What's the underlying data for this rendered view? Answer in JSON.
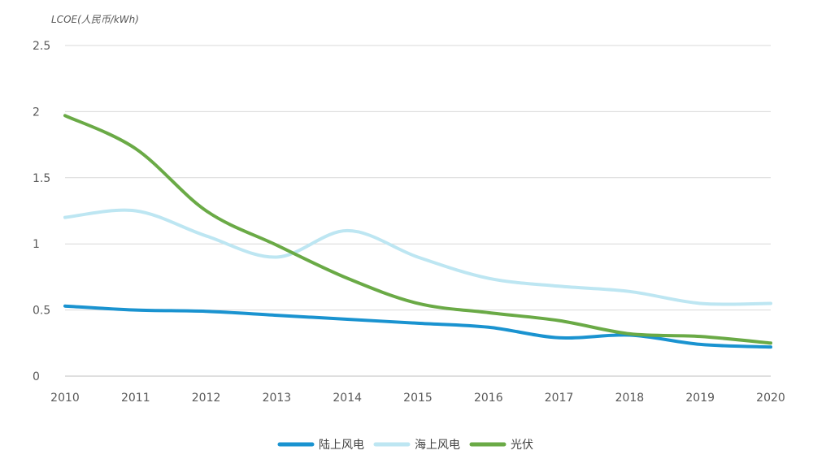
{
  "chart_data": {
    "type": "line",
    "ylabel": "LCOE(人民币/kWh)",
    "xlabel": "",
    "x": [
      "2010",
      "2011",
      "2012",
      "2013",
      "2014",
      "2015",
      "2016",
      "2017",
      "2018",
      "2019",
      "2020"
    ],
    "ylim": [
      0,
      2.5
    ],
    "yticks": [
      "0",
      "0.5",
      "1",
      "1.5",
      "2",
      "2.5"
    ],
    "grid": true,
    "legend_position": "bottom-center",
    "series": [
      {
        "name": "陆上风电",
        "color": "#1a93d0",
        "values": [
          0.53,
          0.5,
          0.49,
          0.46,
          0.43,
          0.4,
          0.37,
          0.29,
          0.31,
          0.24,
          0.22
        ]
      },
      {
        "name": "海上风电",
        "color": "#bde6f2",
        "values": [
          1.2,
          1.25,
          1.06,
          0.9,
          1.1,
          0.9,
          0.74,
          0.68,
          0.64,
          0.55,
          0.55
        ]
      },
      {
        "name": "光伏",
        "color": "#6aaa46",
        "values": [
          1.97,
          1.72,
          1.25,
          0.99,
          0.74,
          0.55,
          0.48,
          0.42,
          0.32,
          0.3,
          0.25
        ]
      }
    ]
  }
}
